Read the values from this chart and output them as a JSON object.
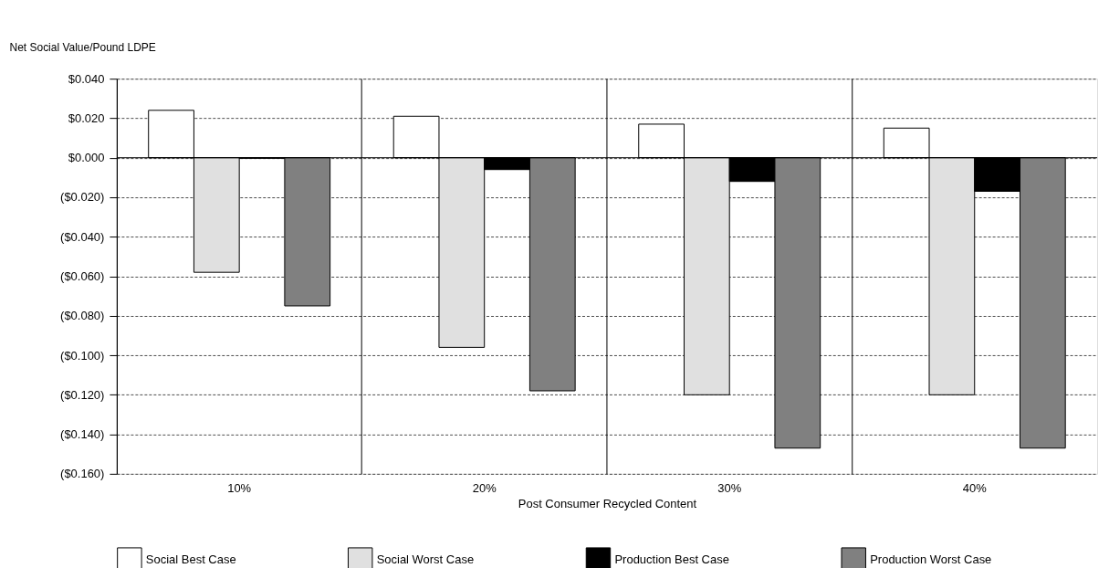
{
  "chart_data": {
    "type": "bar",
    "ylabel": "Net Social Value/Pound LDPE",
    "xlabel": "Post Consumer Recycled Content",
    "categories": [
      "10%",
      "20%",
      "30%",
      "40%"
    ],
    "series": [
      {
        "name": "Social Best Case",
        "color": "#ffffff",
        "values": [
          0.024,
          0.021,
          0.017,
          0.015
        ]
      },
      {
        "name": "Social Worst Case",
        "color": "#e0e0e0",
        "values": [
          -0.058,
          -0.096,
          -0.12,
          -0.12
        ]
      },
      {
        "name": "Production Best Case",
        "color": "#000000",
        "values": [
          -0.0003,
          -0.006,
          -0.012,
          -0.017
        ]
      },
      {
        "name": "Production Worst Case",
        "color": "#808080",
        "values": [
          -0.075,
          -0.118,
          -0.147,
          -0.147
        ]
      }
    ],
    "ylim": [
      -0.16,
      0.04
    ],
    "yticks": [
      {
        "value": 0.04,
        "label": "$0.040"
      },
      {
        "value": 0.02,
        "label": "$0.020"
      },
      {
        "value": 0,
        "label": "$0.000"
      },
      {
        "value": -0.02,
        "label": "($0.020)"
      },
      {
        "value": -0.04,
        "label": "($0.040)"
      },
      {
        "value": -0.06,
        "label": "($0.060)"
      },
      {
        "value": -0.08,
        "label": "($0.080)"
      },
      {
        "value": -0.1,
        "label": "($0.100)"
      },
      {
        "value": -0.12,
        "label": "($0.120)"
      },
      {
        "value": -0.14,
        "label": "($0.140)"
      },
      {
        "value": -0.16,
        "label": "($0.160)"
      }
    ],
    "grid": true,
    "legend": "bottom"
  }
}
